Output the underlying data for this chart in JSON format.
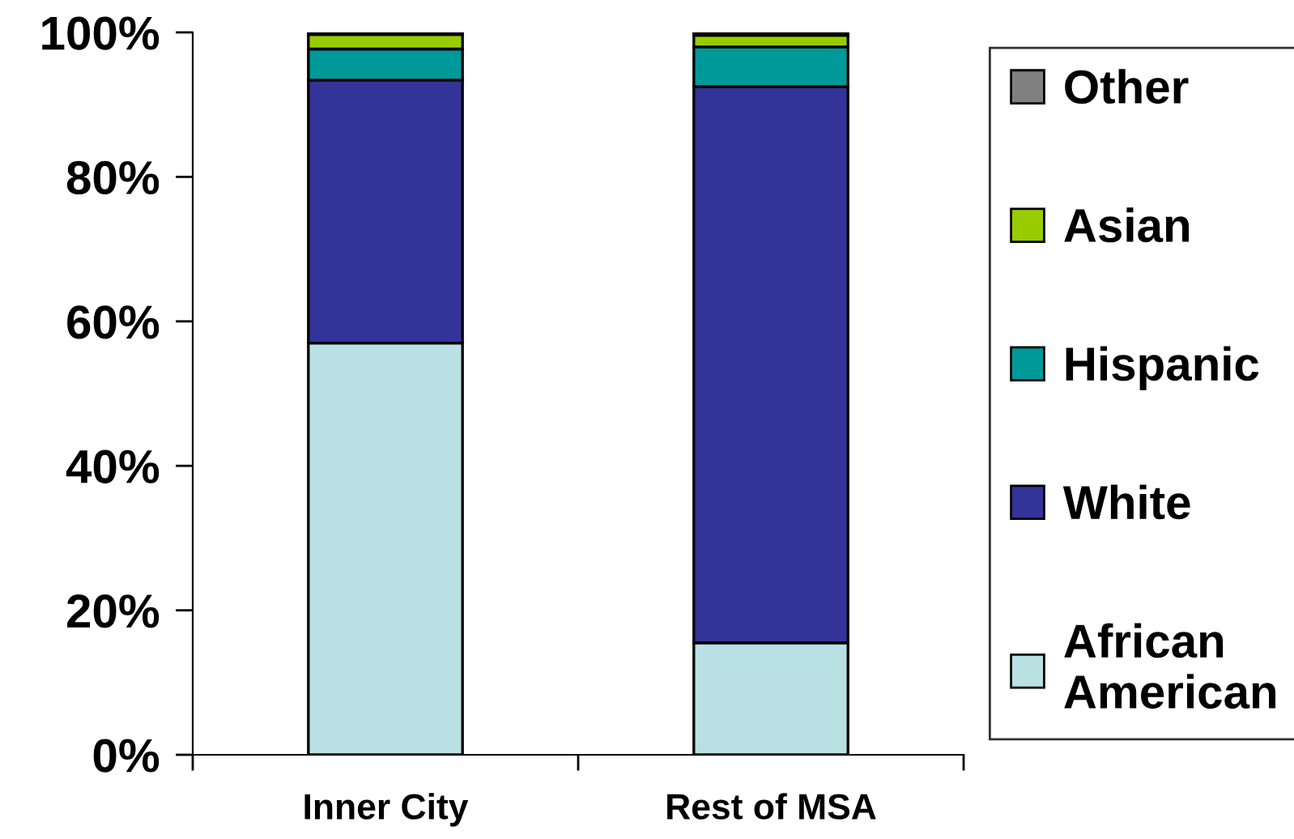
{
  "chart_data": {
    "type": "bar",
    "stacked": true,
    "categories": [
      "Inner City",
      "Rest of MSA"
    ],
    "series": [
      {
        "name": "African American",
        "color": "#b9e0e3",
        "values": [
          57.0,
          15.5
        ]
      },
      {
        "name": "White",
        "color": "#333399",
        "values": [
          36.4,
          77.0
        ]
      },
      {
        "name": "Hispanic",
        "color": "#009999",
        "values": [
          4.3,
          5.5
        ]
      },
      {
        "name": "Asian",
        "color": "#99cc00",
        "values": [
          2.0,
          1.6
        ]
      },
      {
        "name": "Other",
        "color": "#808080",
        "values": [
          0.3,
          0.4
        ]
      }
    ],
    "ylim": [
      0,
      100
    ],
    "yticks": [
      {
        "value": 0,
        "label": "0%"
      },
      {
        "value": 20,
        "label": "20%"
      },
      {
        "value": 40,
        "label": "40%"
      },
      {
        "value": 60,
        "label": "60%"
      },
      {
        "value": 80,
        "label": "80%"
      },
      {
        "value": 100,
        "label": "100%"
      }
    ],
    "legend": "right",
    "grid": false
  }
}
